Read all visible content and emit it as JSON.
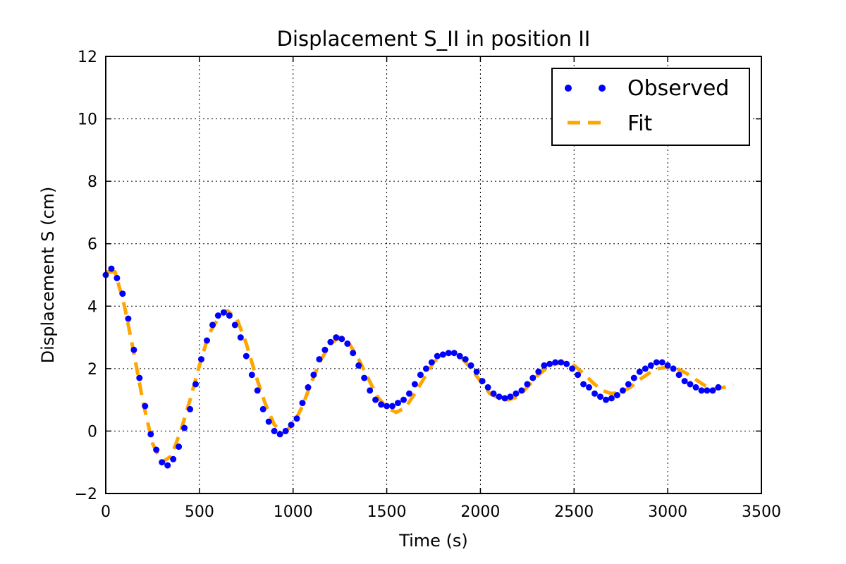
{
  "chart_data": {
    "type": "line",
    "title": "Displacement S_II in position II",
    "xlabel": "Time (s)",
    "ylabel": "Displacement S (cm)",
    "xlim": [
      0,
      3500
    ],
    "ylim": [
      -2,
      12
    ],
    "x_ticks": [
      0,
      500,
      1000,
      1500,
      2000,
      2500,
      3000,
      3500
    ],
    "x_tick_labels": [
      "0",
      "500",
      "1000",
      "1500",
      "2000",
      "2500",
      "3000",
      "3500"
    ],
    "y_ticks": [
      -2,
      0,
      2,
      4,
      6,
      8,
      10,
      12
    ],
    "y_tick_labels": [
      "−2",
      "0",
      "2",
      "4",
      "6",
      "8",
      "10",
      "12"
    ],
    "grid": true,
    "legend_position": "top-right",
    "series": [
      {
        "name": "Observed",
        "style": "markers",
        "color": "#0000ff",
        "points": [
          [
            0,
            5.0
          ],
          [
            30,
            5.2
          ],
          [
            60,
            4.9
          ],
          [
            90,
            4.4
          ],
          [
            120,
            3.6
          ],
          [
            150,
            2.6
          ],
          [
            180,
            1.7
          ],
          [
            210,
            0.8
          ],
          [
            240,
            -0.1
          ],
          [
            270,
            -0.6
          ],
          [
            300,
            -1.0
          ],
          [
            330,
            -1.1
          ],
          [
            360,
            -0.9
          ],
          [
            390,
            -0.5
          ],
          [
            420,
            0.1
          ],
          [
            450,
            0.7
          ],
          [
            480,
            1.5
          ],
          [
            510,
            2.3
          ],
          [
            540,
            2.9
          ],
          [
            570,
            3.4
          ],
          [
            600,
            3.7
          ],
          [
            630,
            3.8
          ],
          [
            660,
            3.7
          ],
          [
            690,
            3.4
          ],
          [
            720,
            3.0
          ],
          [
            750,
            2.4
          ],
          [
            780,
            1.8
          ],
          [
            810,
            1.3
          ],
          [
            840,
            0.7
          ],
          [
            870,
            0.3
          ],
          [
            900,
            0.0
          ],
          [
            930,
            -0.1
          ],
          [
            960,
            0.0
          ],
          [
            990,
            0.2
          ],
          [
            1020,
            0.4
          ],
          [
            1050,
            0.9
          ],
          [
            1080,
            1.4
          ],
          [
            1110,
            1.8
          ],
          [
            1140,
            2.3
          ],
          [
            1170,
            2.6
          ],
          [
            1200,
            2.85
          ],
          [
            1230,
            3.0
          ],
          [
            1260,
            2.95
          ],
          [
            1290,
            2.8
          ],
          [
            1320,
            2.5
          ],
          [
            1350,
            2.1
          ],
          [
            1380,
            1.7
          ],
          [
            1410,
            1.3
          ],
          [
            1440,
            1.0
          ],
          [
            1470,
            0.85
          ],
          [
            1500,
            0.8
          ],
          [
            1530,
            0.8
          ],
          [
            1560,
            0.9
          ],
          [
            1590,
            1.0
          ],
          [
            1620,
            1.2
          ],
          [
            1650,
            1.5
          ],
          [
            1680,
            1.8
          ],
          [
            1710,
            2.0
          ],
          [
            1740,
            2.2
          ],
          [
            1770,
            2.4
          ],
          [
            1800,
            2.45
          ],
          [
            1830,
            2.5
          ],
          [
            1860,
            2.5
          ],
          [
            1890,
            2.4
          ],
          [
            1920,
            2.3
          ],
          [
            1950,
            2.1
          ],
          [
            1980,
            1.9
          ],
          [
            2010,
            1.6
          ],
          [
            2040,
            1.4
          ],
          [
            2070,
            1.2
          ],
          [
            2100,
            1.1
          ],
          [
            2130,
            1.05
          ],
          [
            2160,
            1.1
          ],
          [
            2190,
            1.2
          ],
          [
            2220,
            1.3
          ],
          [
            2250,
            1.5
          ],
          [
            2280,
            1.7
          ],
          [
            2310,
            1.9
          ],
          [
            2340,
            2.1
          ],
          [
            2370,
            2.15
          ],
          [
            2400,
            2.2
          ],
          [
            2430,
            2.2
          ],
          [
            2460,
            2.15
          ],
          [
            2490,
            2.0
          ],
          [
            2520,
            1.8
          ],
          [
            2550,
            1.5
          ],
          [
            2580,
            1.4
          ],
          [
            2610,
            1.2
          ],
          [
            2640,
            1.1
          ],
          [
            2670,
            1.0
          ],
          [
            2700,
            1.05
          ],
          [
            2730,
            1.15
          ],
          [
            2760,
            1.3
          ],
          [
            2790,
            1.5
          ],
          [
            2820,
            1.7
          ],
          [
            2850,
            1.9
          ],
          [
            2880,
            2.0
          ],
          [
            2910,
            2.1
          ],
          [
            2940,
            2.2
          ],
          [
            2970,
            2.2
          ],
          [
            3000,
            2.1
          ],
          [
            3030,
            2.0
          ],
          [
            3060,
            1.8
          ],
          [
            3090,
            1.6
          ],
          [
            3120,
            1.5
          ],
          [
            3150,
            1.4
          ],
          [
            3180,
            1.3
          ],
          [
            3210,
            1.3
          ],
          [
            3240,
            1.3
          ],
          [
            3270,
            1.4
          ]
        ]
      },
      {
        "name": "Fit",
        "style": "dashed",
        "color": "#ffa500",
        "points": [
          [
            0,
            5.1
          ],
          [
            50,
            5.1
          ],
          [
            100,
            4.0
          ],
          [
            150,
            2.5
          ],
          [
            200,
            0.9
          ],
          [
            250,
            -0.4
          ],
          [
            300,
            -1.0
          ],
          [
            350,
            -0.8
          ],
          [
            400,
            0.0
          ],
          [
            450,
            1.0
          ],
          [
            500,
            2.1
          ],
          [
            550,
            3.1
          ],
          [
            600,
            3.6
          ],
          [
            650,
            3.85
          ],
          [
            700,
            3.6
          ],
          [
            750,
            2.8
          ],
          [
            800,
            1.8
          ],
          [
            850,
            0.9
          ],
          [
            900,
            0.2
          ],
          [
            950,
            -0.05
          ],
          [
            1000,
            0.2
          ],
          [
            1050,
            0.8
          ],
          [
            1100,
            1.6
          ],
          [
            1150,
            2.3
          ],
          [
            1200,
            2.8
          ],
          [
            1250,
            3.0
          ],
          [
            1300,
            2.8
          ],
          [
            1350,
            2.3
          ],
          [
            1400,
            1.7
          ],
          [
            1450,
            1.1
          ],
          [
            1500,
            0.75
          ],
          [
            1550,
            0.6
          ],
          [
            1600,
            0.75
          ],
          [
            1650,
            1.2
          ],
          [
            1700,
            1.7
          ],
          [
            1750,
            2.2
          ],
          [
            1800,
            2.45
          ],
          [
            1850,
            2.5
          ],
          [
            1900,
            2.35
          ],
          [
            1950,
            2.0
          ],
          [
            2000,
            1.6
          ],
          [
            2050,
            1.2
          ],
          [
            2100,
            1.05
          ],
          [
            2150,
            1.0
          ],
          [
            2200,
            1.1
          ],
          [
            2250,
            1.4
          ],
          [
            2300,
            1.75
          ],
          [
            2350,
            2.0
          ],
          [
            2400,
            2.15
          ],
          [
            2450,
            2.2
          ],
          [
            2500,
            2.1
          ],
          [
            2550,
            1.85
          ],
          [
            2600,
            1.55
          ],
          [
            2650,
            1.3
          ],
          [
            2700,
            1.2
          ],
          [
            2750,
            1.25
          ],
          [
            2800,
            1.4
          ],
          [
            2850,
            1.65
          ],
          [
            2900,
            1.85
          ],
          [
            2950,
            2.0
          ],
          [
            3000,
            2.05
          ],
          [
            3050,
            2.0
          ],
          [
            3100,
            1.85
          ],
          [
            3150,
            1.65
          ],
          [
            3200,
            1.45
          ],
          [
            3250,
            1.35
          ],
          [
            3300,
            1.4
          ],
          [
            3350,
            1.5
          ]
        ]
      }
    ]
  }
}
